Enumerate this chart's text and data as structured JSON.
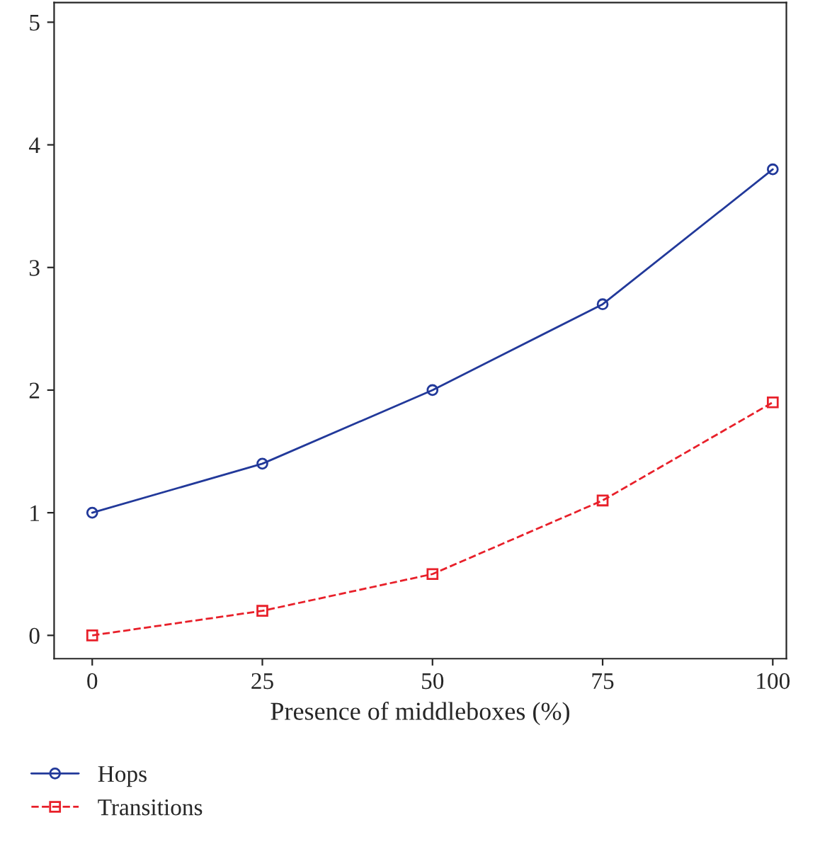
{
  "chart_data": {
    "type": "line",
    "xlabel": "Presence of middleboxes (%)",
    "x": [
      0,
      25,
      50,
      75,
      100
    ],
    "xlim": [
      -5.6,
      102
    ],
    "xticks": [
      0,
      25,
      50,
      75,
      100
    ],
    "ylim": [
      -0.19,
      5.16
    ],
    "yticks": [
      0,
      1,
      2,
      3,
      4,
      5
    ],
    "grid": false,
    "legend": "bottom left",
    "series": [
      {
        "name": "Hops",
        "color": "#22399a",
        "values": [
          1,
          1.4,
          2,
          2.7,
          3.8
        ],
        "marker": "circle",
        "line_style": "solid"
      },
      {
        "name": "Transitions",
        "color": "#e8202a",
        "values": [
          0,
          0.2,
          0.5,
          1.1,
          1.9
        ],
        "marker": "square",
        "line_style": "dashed"
      }
    ]
  }
}
